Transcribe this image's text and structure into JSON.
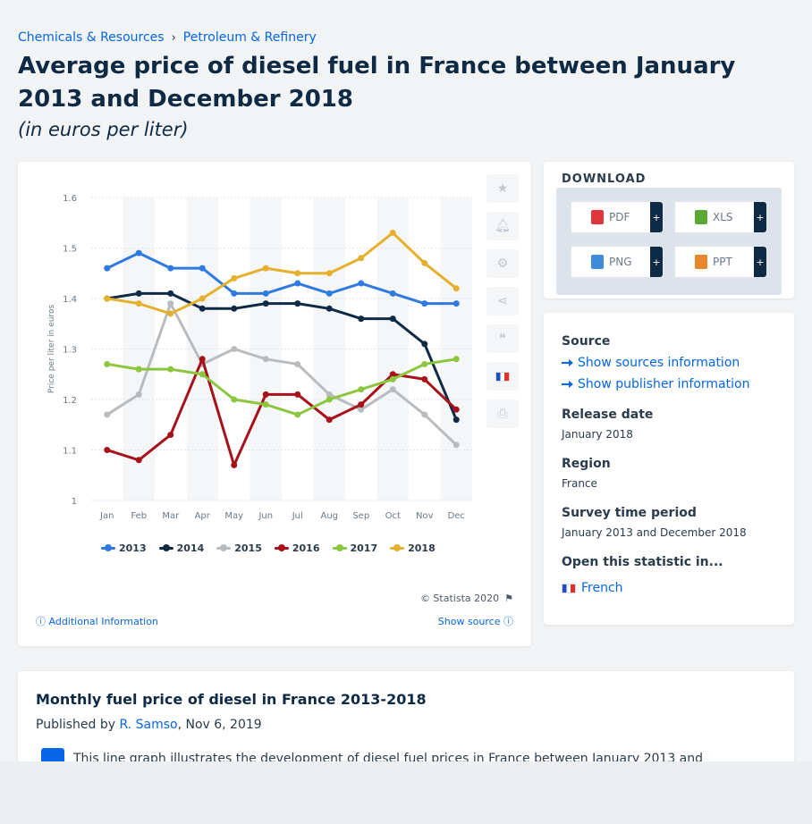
{
  "breadcrumb": [
    "Chemicals & Resources",
    "Petroleum & Refinery"
  ],
  "title": "Average price of diesel fuel in France between January 2013 and December 2018",
  "subtitle": "(in euros per liter)",
  "chart_data": {
    "type": "line",
    "ylabel": "Price per liter in euros",
    "ylim": [
      1,
      1.6
    ],
    "yticks": [
      "1",
      "1.1",
      "1.2",
      "1.3",
      "1.4",
      "1.5",
      "1.6"
    ],
    "categories": [
      "Jan",
      "Feb",
      "Mar",
      "Apr",
      "May",
      "Jun",
      "Jul",
      "Aug",
      "Sep",
      "Oct",
      "Nov",
      "Dec"
    ],
    "grid": true,
    "legend_position": "bottom",
    "series": [
      {
        "name": "2013",
        "color": "#2f7ae0",
        "values": [
          1.46,
          1.49,
          1.46,
          1.46,
          1.41,
          1.41,
          1.43,
          1.41,
          1.43,
          1.41,
          1.39,
          1.39
        ]
      },
      {
        "name": "2014",
        "color": "#0f2a44",
        "values": [
          1.4,
          1.41,
          1.41,
          1.38,
          1.38,
          1.39,
          1.39,
          1.38,
          1.36,
          1.36,
          1.31,
          1.16
        ]
      },
      {
        "name": "2015",
        "color": "#b9bcbf",
        "values": [
          1.17,
          1.21,
          1.39,
          1.27,
          1.3,
          1.28,
          1.27,
          1.21,
          1.18,
          1.22,
          1.17,
          1.11
        ]
      },
      {
        "name": "2016",
        "color": "#a6111a",
        "values": [
          1.1,
          1.08,
          1.13,
          1.28,
          1.07,
          1.21,
          1.21,
          1.16,
          1.19,
          1.25,
          1.24,
          1.18
        ]
      },
      {
        "name": "2017",
        "color": "#8cc63f",
        "values": [
          1.27,
          1.26,
          1.26,
          1.25,
          1.2,
          1.19,
          1.17,
          1.2,
          1.22,
          1.24,
          1.27,
          1.28
        ]
      },
      {
        "name": "2018",
        "color": "#e6b02f",
        "values": [
          1.4,
          1.39,
          1.37,
          1.4,
          1.44,
          1.46,
          1.45,
          1.45,
          1.48,
          1.53,
          1.47,
          1.42
        ]
      }
    ]
  },
  "chart_footer": {
    "copyright": "© Statista 2020",
    "additional_info": "Additional Information",
    "show_source": "Show source"
  },
  "download": {
    "title": "DOWNLOAD",
    "buttons": [
      {
        "label": "PDF",
        "color": "#e0353b"
      },
      {
        "label": "XLS",
        "color": "#5aa832"
      },
      {
        "label": "PNG",
        "color": "#3d8bd9"
      },
      {
        "label": "PPT",
        "color": "#e8862b"
      }
    ],
    "plus": "+"
  },
  "meta": {
    "source_label": "Source",
    "show_sources": "Show sources information",
    "show_publisher": "Show publisher information",
    "release_label": "Release date",
    "release_value": "January 2018",
    "region_label": "Region",
    "region_value": "France",
    "survey_label": "Survey time period",
    "survey_value": "January 2013 and December 2018",
    "open_label": "Open this statistic in...",
    "open_french": "French"
  },
  "description": {
    "title": "Monthly fuel price of diesel in France 2013-2018",
    "published_prefix": "Published by",
    "author": "R. Samso",
    "date": ", Nov 6, 2019",
    "text": "This line graph illustrates the development of diesel fuel prices in France between January 2013 and"
  }
}
